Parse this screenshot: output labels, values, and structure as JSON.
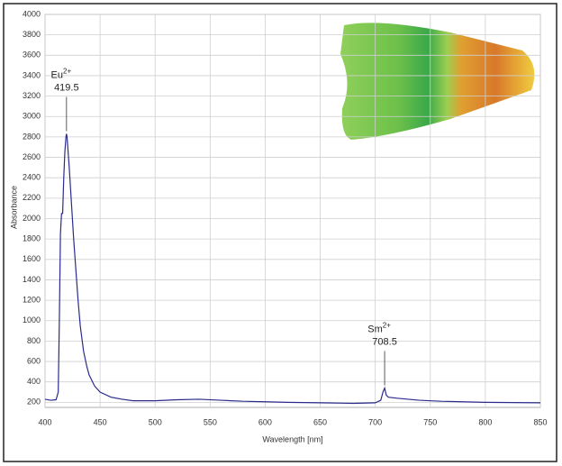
{
  "chart_data": {
    "type": "line",
    "x_label": "Wavelength [nm]",
    "y_label": "Absorbance",
    "x": [
      400,
      405,
      410,
      412,
      413,
      414,
      415,
      416,
      417,
      418,
      419,
      419.5,
      420,
      422,
      424,
      426,
      428,
      430,
      432,
      435,
      438,
      440,
      445,
      450,
      460,
      470,
      480,
      500,
      520,
      540,
      560,
      580,
      600,
      620,
      650,
      680,
      700,
      705,
      707,
      708.5,
      710,
      712,
      720,
      740,
      760,
      800,
      850
    ],
    "series": [
      {
        "color": "#2b2b8c",
        "values": [
          230,
          220,
          225,
          300,
          1000,
          1850,
          2050,
          2050,
          2400,
          2650,
          2800,
          2830,
          2800,
          2500,
          2150,
          1800,
          1500,
          1200,
          950,
          700,
          550,
          470,
          360,
          300,
          250,
          230,
          215,
          215,
          225,
          230,
          220,
          210,
          205,
          200,
          195,
          190,
          195,
          220,
          300,
          340,
          270,
          250,
          240,
          220,
          210,
          200,
          195
        ]
      }
    ],
    "xlim": [
      400,
      850
    ],
    "ylim": [
      150,
      4000
    ],
    "xticks": [
      400,
      450,
      500,
      550,
      600,
      650,
      700,
      750,
      800,
      850
    ],
    "yticks": [
      200,
      400,
      600,
      800,
      1000,
      1200,
      1400,
      1600,
      1800,
      2000,
      2200,
      2400,
      2600,
      2800,
      3000,
      3200,
      3400,
      3600,
      3800,
      4000
    ],
    "grid": true,
    "annotations": [
      {
        "label": "Eu",
        "sup": "2+",
        "x": 419.5
      },
      {
        "label": "Sm",
        "sup": "2+",
        "x": 708.5
      }
    ]
  }
}
